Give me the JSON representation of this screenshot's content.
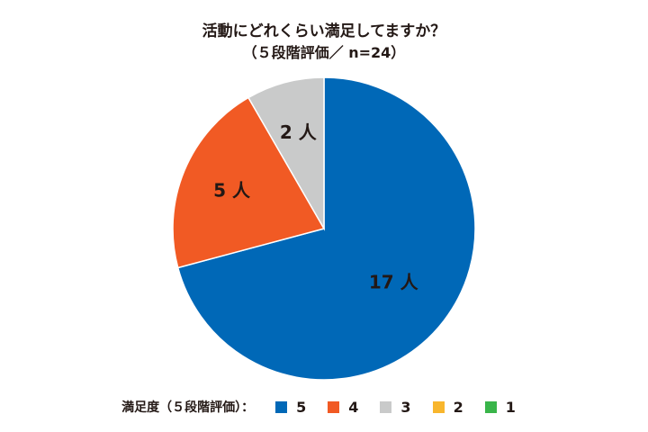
{
  "chart_data": {
    "type": "pie",
    "title_line1": "活動にどれくらい満足してますか？",
    "title_line2": "（５段階評価／ n=24）",
    "slice_unit": "人",
    "slices": [
      {
        "name": "5",
        "value": 17,
        "color": "#0068b7",
        "label": "17 人"
      },
      {
        "name": "4",
        "value": 5,
        "color": "#f15a24",
        "label": "5 人"
      },
      {
        "name": "3",
        "value": 2,
        "color": "#c9caca",
        "label": "2 人"
      },
      {
        "name": "2",
        "value": 0,
        "color": "#f8b62d",
        "label": ""
      },
      {
        "name": "1",
        "value": 0,
        "color": "#39b54a",
        "label": ""
      }
    ],
    "legend": {
      "title": "満足度（５段階評価）：",
      "placement": "bottom",
      "items": [
        {
          "name": "5",
          "color": "#0068b7"
        },
        {
          "name": "4",
          "color": "#f15a24"
        },
        {
          "name": "3",
          "color": "#c9caca"
        },
        {
          "name": "2",
          "color": "#f8b62d"
        },
        {
          "name": "1",
          "color": "#39b54a"
        }
      ]
    },
    "start_angle": "12-o'clock",
    "direction": "counterclockwise-from-top-for-first-slice-to-right"
  }
}
